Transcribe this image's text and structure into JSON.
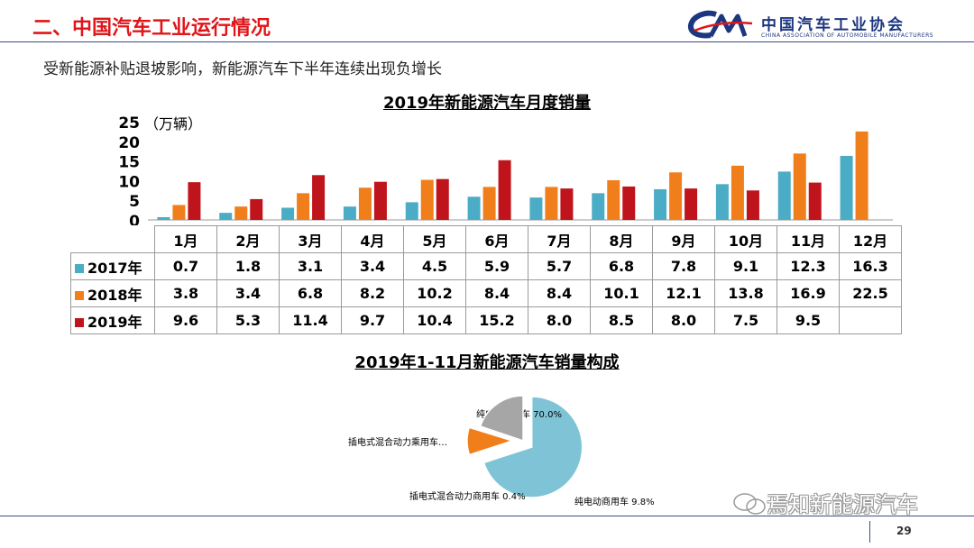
{
  "header": {
    "title": "二、中国汽车工业运行情况",
    "logo_text": "中国汽车工业协会",
    "logo_subtext": "CHINA ASSOCIATION OF AUTOMOBILE MANUFACTURERS",
    "accent_color": "#e0151a",
    "logo_color": "#1d3680"
  },
  "subtitle": "受新能源补贴退坡影响，新能源汽车下半年连续出现负增长",
  "page_number": "29",
  "watermark": "焉知新能源汽车",
  "chart_data": [
    {
      "type": "bar",
      "title": "2019年新能源汽车月度销量",
      "ylabel": "（万辆）",
      "ylim": [
        0,
        25
      ],
      "yticks": [
        0,
        5,
        10,
        15,
        20,
        25
      ],
      "categories": [
        "1月",
        "2月",
        "3月",
        "4月",
        "5月",
        "6月",
        "7月",
        "8月",
        "9月",
        "10月",
        "11月",
        "12月"
      ],
      "series": [
        {
          "name": "2017年",
          "color": "#4bacc6",
          "values": [
            0.7,
            1.8,
            3.1,
            3.4,
            4.5,
            5.9,
            5.7,
            6.8,
            7.8,
            9.1,
            12.3,
            16.3
          ],
          "labels": [
            "0.7",
            "1.8",
            "3.1",
            "3.4",
            "4.5",
            "5.9",
            "5.7",
            "6.8",
            "7.8",
            "9.1",
            "12.3",
            "16.3"
          ]
        },
        {
          "name": "2018年",
          "color": "#f07f1b",
          "values": [
            3.8,
            3.4,
            6.8,
            8.2,
            10.2,
            8.4,
            8.4,
            10.1,
            12.1,
            13.8,
            16.9,
            22.5
          ],
          "labels": [
            "3.8",
            "3.4",
            "6.8",
            "8.2",
            "10.2",
            "8.4",
            "8.4",
            "10.1",
            "12.1",
            "13.8",
            "16.9",
            "22.5"
          ]
        },
        {
          "name": "2019年",
          "color": "#c0141c",
          "values": [
            9.6,
            5.3,
            11.4,
            9.7,
            10.4,
            15.2,
            8.0,
            8.5,
            8.0,
            7.5,
            9.5,
            null
          ],
          "labels": [
            "9.6",
            "5.3",
            "11.4",
            "9.7",
            "10.4",
            "15.2",
            "8.0",
            "8.5",
            "8.0",
            "7.5",
            "9.5",
            ""
          ]
        }
      ],
      "legend": "data-table"
    },
    {
      "type": "pie",
      "title": "2019年1-11月新能源汽车销量构成",
      "slices": [
        {
          "label": "纯电动乘用车",
          "pct_text": "70.0%",
          "value": 70.0,
          "color": "#7fc4d6",
          "exploded": true
        },
        {
          "label": "纯电动商用车",
          "pct_text": "9.8%",
          "value": 9.8,
          "color": "#f07f1b",
          "exploded": true
        },
        {
          "label": "插电式混合动力商用车",
          "pct_text": "0.4%",
          "value": 0.4,
          "color": "#2e5fa8",
          "exploded": false
        },
        {
          "label": "插电式混合动力乘用车…",
          "pct_text": "",
          "value": 19.8,
          "color": "#a6a6a6",
          "exploded": false
        }
      ]
    }
  ]
}
